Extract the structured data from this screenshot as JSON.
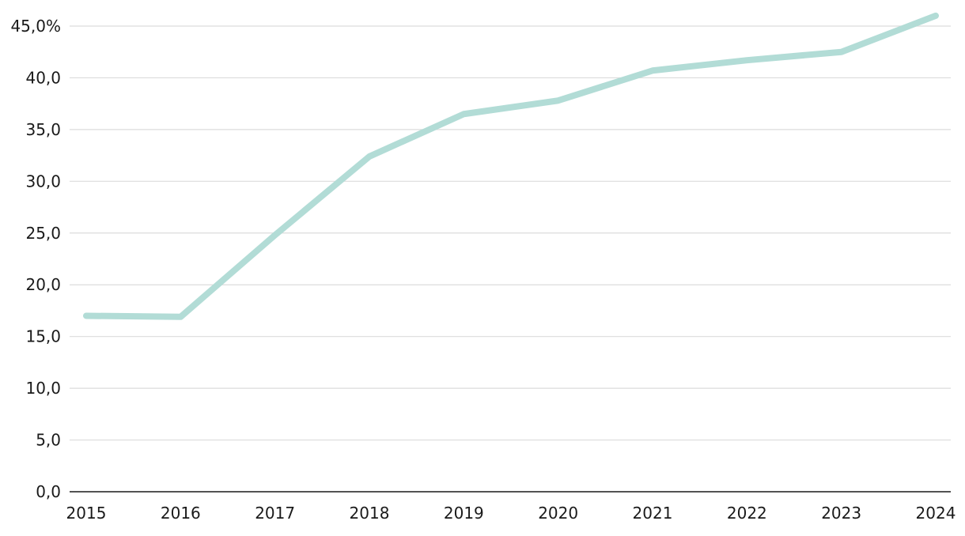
{
  "chart_data": {
    "type": "line",
    "title": "",
    "xlabel": "",
    "ylabel": "",
    "categories": [
      "2015",
      "2016",
      "2017",
      "2018",
      "2019",
      "2020",
      "2021",
      "2022",
      "2023",
      "2024"
    ],
    "series": [
      {
        "values": [
          17.0,
          16.9,
          24.8,
          32.4,
          36.5,
          37.8,
          40.7,
          41.7,
          42.5,
          46.0
        ],
        "color": "#b2dcd6"
      }
    ],
    "ylim": [
      0,
      45
    ],
    "y_ticks": [
      0,
      5,
      10,
      15,
      20,
      25,
      30,
      35,
      40,
      45
    ],
    "y_tick_labels": [
      "0,0",
      "5,0",
      "10,0",
      "15,0",
      "20,0",
      "25,0",
      "30,0",
      "35,0",
      "40,0",
      "45,0%"
    ],
    "grid": true,
    "legend": "none"
  }
}
